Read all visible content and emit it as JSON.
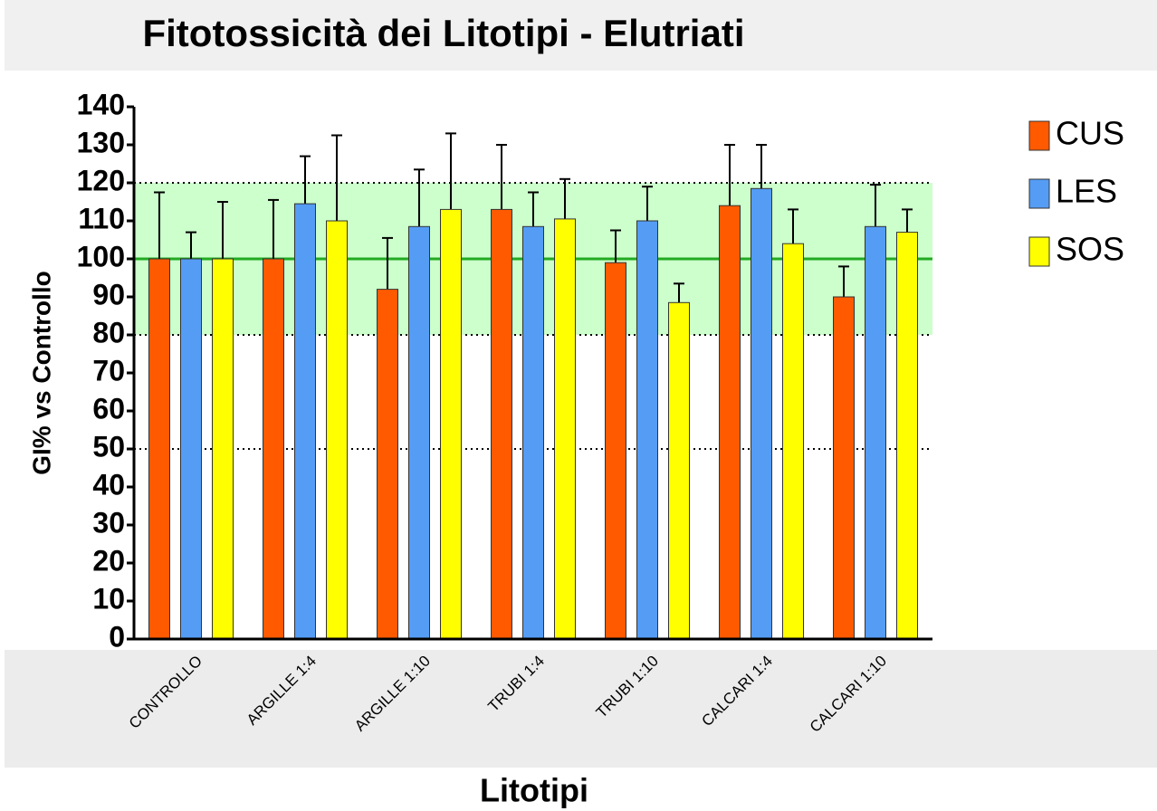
{
  "chart_data": {
    "type": "bar",
    "title": "Fitotossicità dei Litotipi - Elutriati",
    "x_label": "Litotipi",
    "y_label": "GI% vs Controllo",
    "categories": [
      "CONTROLLO",
      "ARGILLE 1:4",
      "ARGILLE 1:10",
      "TRUBI 1:4",
      "TRUBI 1:10",
      "CALCARI 1:4",
      "CALCARI 1:10"
    ],
    "series": [
      {
        "name": "CUS",
        "color": "#ff5a00",
        "values": [
          100,
          100,
          92,
          113,
          99,
          114,
          90
        ],
        "errors": [
          17.5,
          15.5,
          13.5,
          17,
          8.5,
          16,
          8
        ]
      },
      {
        "name": "LES",
        "color": "#559cf5",
        "values": [
          100,
          114.5,
          108.5,
          108.5,
          110,
          118.5,
          108.5
        ],
        "errors": [
          7,
          12.5,
          15,
          9,
          9,
          11.5,
          11
        ]
      },
      {
        "name": "SOS",
        "color": "#ffff00",
        "values": [
          100,
          110,
          113,
          110.5,
          88.5,
          104,
          107
        ],
        "errors": [
          15,
          22.5,
          20,
          10.5,
          5,
          9,
          6
        ]
      }
    ],
    "ylim": [
      0,
      140
    ],
    "yticks": [
      0,
      10,
      20,
      30,
      40,
      50,
      60,
      70,
      80,
      90,
      100,
      110,
      120,
      130,
      140
    ],
    "band": [
      80,
      120
    ],
    "band_color": "#ccffcc",
    "reference_line": 100,
    "reference_color": "#22aa22",
    "dotted_lines": [
      50,
      80,
      120
    ],
    "legend": "right"
  }
}
